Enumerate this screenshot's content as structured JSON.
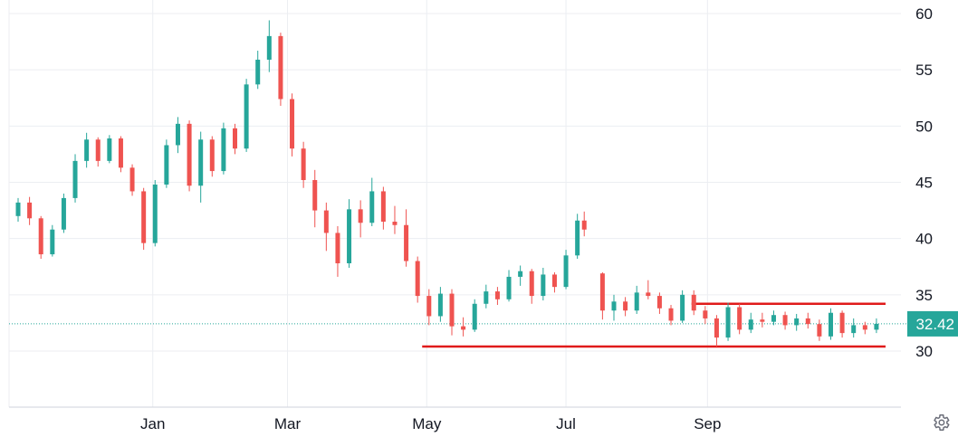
{
  "chart_data": {
    "type": "candlestick",
    "y_axis": {
      "ticks": [
        60,
        55,
        50,
        45,
        40,
        35,
        30
      ],
      "range": [
        24.5,
        60.5
      ],
      "position": "right",
      "grid": true
    },
    "x_axis": {
      "ticks": [
        "Jan",
        "Mar",
        "May",
        "Jul",
        "Sep"
      ],
      "grid": true
    },
    "last_price": {
      "value": 32.42,
      "label": "32.42"
    },
    "candle_series": [
      {
        "x": "Nov 03",
        "o": 42.0,
        "h": 43.6,
        "l": 41.5,
        "c": 43.2
      },
      {
        "x": "Nov 08",
        "o": 43.2,
        "h": 43.7,
        "l": 41.2,
        "c": 41.8
      },
      {
        "x": "Nov 13",
        "o": 41.8,
        "h": 42.0,
        "l": 38.2,
        "c": 38.6
      },
      {
        "x": "Nov 18",
        "o": 38.6,
        "h": 41.2,
        "l": 38.4,
        "c": 40.8
      },
      {
        "x": "Nov 23",
        "o": 40.8,
        "h": 44.0,
        "l": 40.5,
        "c": 43.6
      },
      {
        "x": "Nov 28",
        "o": 43.6,
        "h": 47.5,
        "l": 43.2,
        "c": 46.9
      },
      {
        "x": "Dec 03",
        "o": 46.9,
        "h": 49.4,
        "l": 46.3,
        "c": 48.8
      },
      {
        "x": "Dec 08",
        "o": 48.8,
        "h": 49.0,
        "l": 46.4,
        "c": 46.9
      },
      {
        "x": "Dec 13",
        "o": 46.9,
        "h": 49.2,
        "l": 46.7,
        "c": 48.9
      },
      {
        "x": "Dec 18",
        "o": 48.9,
        "h": 49.1,
        "l": 45.9,
        "c": 46.3
      },
      {
        "x": "Dec 23",
        "o": 46.3,
        "h": 46.6,
        "l": 43.8,
        "c": 44.2
      },
      {
        "x": "Dec 28",
        "o": 44.2,
        "h": 44.5,
        "l": 39.0,
        "c": 39.6
      },
      {
        "x": "Jan 02",
        "o": 39.6,
        "h": 45.2,
        "l": 39.3,
        "c": 44.8
      },
      {
        "x": "Jan 07",
        "o": 44.8,
        "h": 48.8,
        "l": 44.5,
        "c": 48.3
      },
      {
        "x": "Jan 12",
        "o": 48.3,
        "h": 50.8,
        "l": 47.6,
        "c": 50.2
      },
      {
        "x": "Jan 17",
        "o": 50.2,
        "h": 50.5,
        "l": 44.2,
        "c": 44.7
      },
      {
        "x": "Jan 22",
        "o": 44.7,
        "h": 49.5,
        "l": 43.2,
        "c": 48.8
      },
      {
        "x": "Jan 27",
        "o": 48.8,
        "h": 49.1,
        "l": 45.5,
        "c": 46.0
      },
      {
        "x": "Feb 01",
        "o": 46.0,
        "h": 50.3,
        "l": 45.7,
        "c": 49.8
      },
      {
        "x": "Feb 06",
        "o": 49.8,
        "h": 50.2,
        "l": 47.5,
        "c": 48.0
      },
      {
        "x": "Feb 11",
        "o": 48.0,
        "h": 54.2,
        "l": 47.7,
        "c": 53.7
      },
      {
        "x": "Feb 16",
        "o": 53.7,
        "h": 56.7,
        "l": 53.3,
        "c": 55.9
      },
      {
        "x": "Feb 21",
        "o": 55.9,
        "h": 59.4,
        "l": 54.8,
        "c": 58.0
      },
      {
        "x": "Feb 26",
        "o": 58.0,
        "h": 58.3,
        "l": 51.8,
        "c": 52.4
      },
      {
        "x": "Mar 03",
        "o": 52.4,
        "h": 52.9,
        "l": 47.3,
        "c": 48.0
      },
      {
        "x": "Mar 08",
        "o": 48.0,
        "h": 48.6,
        "l": 44.5,
        "c": 45.2
      },
      {
        "x": "Mar 13",
        "o": 45.2,
        "h": 46.1,
        "l": 41.0,
        "c": 42.5
      },
      {
        "x": "Mar 18",
        "o": 42.5,
        "h": 43.2,
        "l": 38.9,
        "c": 40.5
      },
      {
        "x": "Mar 23",
        "o": 40.5,
        "h": 41.1,
        "l": 36.6,
        "c": 37.8
      },
      {
        "x": "Mar 28",
        "o": 37.8,
        "h": 43.5,
        "l": 37.4,
        "c": 42.6
      },
      {
        "x": "Apr 02",
        "o": 42.6,
        "h": 43.4,
        "l": 40.1,
        "c": 41.4
      },
      {
        "x": "Apr 07",
        "o": 41.4,
        "h": 45.4,
        "l": 41.1,
        "c": 44.2
      },
      {
        "x": "Apr 12",
        "o": 44.2,
        "h": 44.6,
        "l": 40.8,
        "c": 41.5
      },
      {
        "x": "Apr 17",
        "o": 41.5,
        "h": 42.9,
        "l": 40.4,
        "c": 41.2
      },
      {
        "x": "Apr 22",
        "o": 41.2,
        "h": 42.6,
        "l": 37.5,
        "c": 38.0
      },
      {
        "x": "Apr 27",
        "o": 38.0,
        "h": 38.4,
        "l": 34.3,
        "c": 34.9
      },
      {
        "x": "May 02",
        "o": 34.9,
        "h": 35.5,
        "l": 32.3,
        "c": 33.1
      },
      {
        "x": "May 07",
        "o": 33.1,
        "h": 35.7,
        "l": 32.6,
        "c": 35.1
      },
      {
        "x": "May 12",
        "o": 35.1,
        "h": 35.5,
        "l": 31.4,
        "c": 32.2
      },
      {
        "x": "May 17",
        "o": 32.2,
        "h": 33.0,
        "l": 31.3,
        "c": 31.9
      },
      {
        "x": "May 22",
        "o": 31.9,
        "h": 34.6,
        "l": 31.7,
        "c": 34.2
      },
      {
        "x": "May 27",
        "o": 34.2,
        "h": 35.9,
        "l": 33.8,
        "c": 35.3
      },
      {
        "x": "Jun 01",
        "o": 35.3,
        "h": 35.7,
        "l": 34.1,
        "c": 34.6
      },
      {
        "x": "Jun 06",
        "o": 34.6,
        "h": 37.2,
        "l": 34.4,
        "c": 36.6
      },
      {
        "x": "Jun 11",
        "o": 36.6,
        "h": 37.6,
        "l": 35.8,
        "c": 37.1
      },
      {
        "x": "Jun 16",
        "o": 37.1,
        "h": 37.3,
        "l": 34.2,
        "c": 34.9
      },
      {
        "x": "Jun 21",
        "o": 34.9,
        "h": 37.4,
        "l": 34.5,
        "c": 36.8
      },
      {
        "x": "Jun 26",
        "o": 36.8,
        "h": 37.0,
        "l": 35.2,
        "c": 35.7
      },
      {
        "x": "Jul 01",
        "o": 35.7,
        "h": 39.0,
        "l": 35.5,
        "c": 38.5
      },
      {
        "x": "Jul 06",
        "o": 38.5,
        "h": 42.2,
        "l": 38.2,
        "c": 41.6
      },
      {
        "x": "Jul 09",
        "o": 41.6,
        "h": 42.4,
        "l": 40.2,
        "c": 40.8
      },
      {
        "x": "Jul 17",
        "o": 36.9,
        "h": 37.0,
        "l": 32.8,
        "c": 33.6
      },
      {
        "x": "Jul 22",
        "o": 33.6,
        "h": 35.0,
        "l": 32.7,
        "c": 34.4
      },
      {
        "x": "Jul 27",
        "o": 34.4,
        "h": 34.8,
        "l": 33.1,
        "c": 33.6
      },
      {
        "x": "Aug 01",
        "o": 33.6,
        "h": 35.8,
        "l": 33.3,
        "c": 35.2
      },
      {
        "x": "Aug 06",
        "o": 35.2,
        "h": 36.3,
        "l": 34.6,
        "c": 34.9
      },
      {
        "x": "Aug 11",
        "o": 34.9,
        "h": 35.2,
        "l": 33.3,
        "c": 33.8
      },
      {
        "x": "Aug 16",
        "o": 33.8,
        "h": 34.1,
        "l": 32.3,
        "c": 32.7
      },
      {
        "x": "Aug 21",
        "o": 32.7,
        "h": 35.4,
        "l": 32.5,
        "c": 35.0
      },
      {
        "x": "Aug 26",
        "o": 35.0,
        "h": 35.4,
        "l": 33.2,
        "c": 33.6
      },
      {
        "x": "Aug 31",
        "o": 33.6,
        "h": 34.0,
        "l": 32.4,
        "c": 32.9
      },
      {
        "x": "Sep 05",
        "o": 32.9,
        "h": 33.2,
        "l": 30.4,
        "c": 31.2
      },
      {
        "x": "Sep 10",
        "o": 31.2,
        "h": 34.3,
        "l": 30.9,
        "c": 33.9
      },
      {
        "x": "Sep 15",
        "o": 33.9,
        "h": 34.2,
        "l": 31.5,
        "c": 31.9
      },
      {
        "x": "Sep 20",
        "o": 31.9,
        "h": 33.4,
        "l": 31.6,
        "c": 32.8
      },
      {
        "x": "Sep 25",
        "o": 32.8,
        "h": 33.4,
        "l": 32.1,
        "c": 32.6
      },
      {
        "x": "Sep 30",
        "o": 32.6,
        "h": 33.6,
        "l": 32.3,
        "c": 33.2
      },
      {
        "x": "Oct 05",
        "o": 33.2,
        "h": 33.5,
        "l": 31.9,
        "c": 32.3
      },
      {
        "x": "Oct 10",
        "o": 32.3,
        "h": 33.3,
        "l": 31.8,
        "c": 32.9
      },
      {
        "x": "Oct 15",
        "o": 32.9,
        "h": 33.4,
        "l": 32.0,
        "c": 32.4
      },
      {
        "x": "Oct 20",
        "o": 32.4,
        "h": 32.8,
        "l": 30.9,
        "c": 31.3
      },
      {
        "x": "Oct 25",
        "o": 31.3,
        "h": 33.8,
        "l": 31.0,
        "c": 33.4
      },
      {
        "x": "Oct 30",
        "o": 33.4,
        "h": 33.6,
        "l": 31.2,
        "c": 31.6
      },
      {
        "x": "Nov 04",
        "o": 31.6,
        "h": 32.9,
        "l": 31.2,
        "c": 32.3
      },
      {
        "x": "Nov 09",
        "o": 32.3,
        "h": 32.6,
        "l": 31.5,
        "c": 31.9
      },
      {
        "x": "Nov 14",
        "o": 31.9,
        "h": 32.9,
        "l": 31.6,
        "c": 32.42
      }
    ],
    "annotations": [
      {
        "type": "horizontal-line",
        "value": 30.4,
        "from": "Apr 29",
        "to": "Nov 18",
        "color": "#e01a1a"
      },
      {
        "type": "horizontal-line",
        "value": 34.2,
        "from": "Aug 25",
        "to": "Nov 18",
        "color": "#e01a1a"
      }
    ],
    "colors": {
      "up": "#26a69a",
      "down": "#ef5350",
      "grid": "#eceef2",
      "price_line": "#26a69a",
      "annotation": "#e01a1a"
    }
  },
  "ui": {
    "settings_icon": "gear-icon"
  }
}
